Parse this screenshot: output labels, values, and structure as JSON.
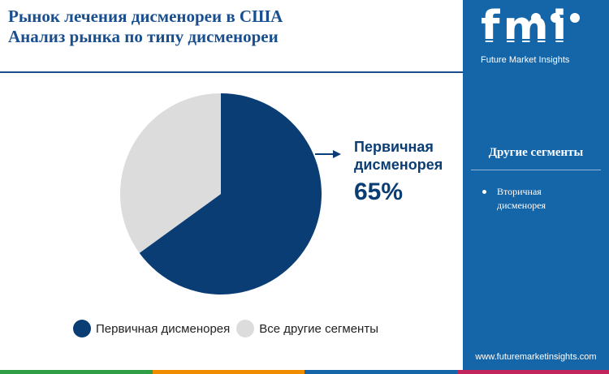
{
  "header": {
    "title_line1": "Рынок лечения дисменореи в США",
    "title_line2": "Анализ рынка по типу дисменореи"
  },
  "chart_data": {
    "type": "pie",
    "categories": [
      "Первичная дисменорея",
      "Все другие сегменты"
    ],
    "values": [
      65,
      35
    ],
    "colors": [
      "#0b3d75",
      "#dcdcdc"
    ],
    "title": "",
    "legend": "bottom",
    "callout": {
      "label_line1": "Первичная",
      "label_line2": "дисменорея",
      "value_text": "65%"
    }
  },
  "sidebar": {
    "logo_text": "fmi",
    "logo_tagline": "Future Market Insights",
    "heading": "Другие сегменты",
    "items": [
      {
        "label_line1": "Вторичная",
        "label_line2": "дисменорея"
      }
    ],
    "website": "www.futuremarketinsights.com"
  },
  "colors": {
    "brand_blue": "#1566a9",
    "dark_blue": "#0b3d75",
    "light_gray": "#dcdcdc",
    "bottom_bar": [
      "#2f9e44",
      "#f08c00",
      "#1566a9",
      "#c2255c"
    ]
  }
}
